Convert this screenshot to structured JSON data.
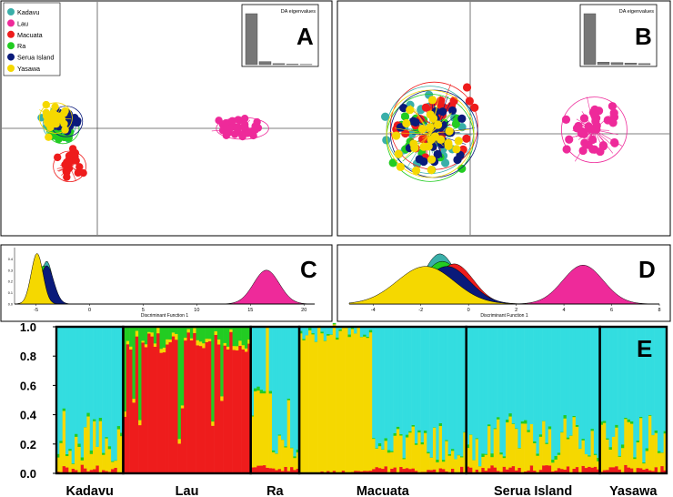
{
  "colors": {
    "Kadavu": "#3aafa9",
    "Lau": "#ee2a9a",
    "Macuata": "#ee1c1c",
    "Ra": "#22cc22",
    "Serua Island": "#0a1a7a",
    "Yasawa": "#f5d800",
    "cyan_structure": "#33dde0",
    "eig_bar": "#777777"
  },
  "chart_data": [
    {
      "type": "scatter",
      "panel": "A",
      "title": "",
      "legend": [
        "Kadavu",
        "Lau",
        "Macuata",
        "Ra",
        "Serua Island",
        "Yasawa"
      ],
      "legend_position": "top-left",
      "centroids": {
        "Kadavu": [
          -0.55,
          0.05
        ],
        "Lau": [
          2.1,
          0.0
        ],
        "Macuata": [
          -0.4,
          -0.55
        ],
        "Ra": [
          -0.5,
          0.0
        ],
        "Serua Island": [
          -0.45,
          0.1
        ],
        "Yasawa": [
          -0.6,
          0.15
        ]
      },
      "eigen_inset": {
        "label": "DA eigenvalues",
        "values": [
          1.0,
          0.06,
          0.02,
          0.01,
          0.005
        ]
      }
    },
    {
      "type": "scatter",
      "panel": "B",
      "title": "",
      "centroids": {
        "Kadavu": [
          -0.5,
          0.05
        ],
        "Lau": [
          1.55,
          0.05
        ],
        "Macuata": [
          -0.45,
          0.1
        ],
        "Ra": [
          -0.5,
          -0.05
        ],
        "Serua Island": [
          -0.45,
          0.0
        ],
        "Yasawa": [
          -0.5,
          0.0
        ]
      },
      "eigen_inset": {
        "label": "DA eigenvalues",
        "values": [
          1.0,
          0.05,
          0.04,
          0.03,
          0.02
        ]
      }
    },
    {
      "type": "area",
      "panel": "C",
      "xlabel": "Discriminant Function 1",
      "xticks": [
        "-5",
        "0",
        "5",
        "10",
        "15",
        "20"
      ],
      "xlim": [
        -7,
        21
      ],
      "yticks": [
        "0.0",
        "0.1",
        "0.2",
        "0.3",
        "0.4"
      ],
      "ylim": [
        0,
        0.5
      ],
      "series": [
        {
          "name": "Kadavu",
          "mean": -4.0,
          "sd": 0.55,
          "peak": 0.38
        },
        {
          "name": "Macuata",
          "mean": -4.6,
          "sd": 0.7,
          "peak": 0.3
        },
        {
          "name": "Ra",
          "mean": -4.3,
          "sd": 0.6,
          "peak": 0.34
        },
        {
          "name": "Serua Island",
          "mean": -4.0,
          "sd": 0.65,
          "peak": 0.34
        },
        {
          "name": "Yasawa",
          "mean": -4.9,
          "sd": 0.55,
          "peak": 0.45
        },
        {
          "name": "Lau",
          "mean": 16.5,
          "sd": 1.2,
          "peak": 0.3
        }
      ]
    },
    {
      "type": "area",
      "panel": "D",
      "xlabel": "Discriminant Function 1",
      "xticks": [
        "-4",
        "-2",
        "0",
        "2",
        "4",
        "6",
        "8"
      ],
      "xlim": [
        -5,
        8
      ],
      "ylim": [
        0,
        0.45
      ],
      "series": [
        {
          "name": "Kadavu",
          "mean": -1.2,
          "sd": 0.7,
          "peak": 0.4
        },
        {
          "name": "Macuata",
          "mean": -0.6,
          "sd": 0.8,
          "peak": 0.32
        },
        {
          "name": "Ra",
          "mean": -1.1,
          "sd": 0.85,
          "peak": 0.34
        },
        {
          "name": "Serua Island",
          "mean": -0.9,
          "sd": 0.95,
          "peak": 0.3
        },
        {
          "name": "Yasawa",
          "mean": -1.8,
          "sd": 1.2,
          "peak": 0.3
        },
        {
          "name": "Lau",
          "mean": 4.8,
          "sd": 0.85,
          "peak": 0.31
        }
      ]
    },
    {
      "type": "bar",
      "panel": "E",
      "stacked": true,
      "yticks": [
        "0.0",
        "0.2",
        "0.4",
        "0.6",
        "0.8",
        "1.0"
      ],
      "ylim": [
        0,
        1
      ],
      "groups": [
        {
          "name": "Kadavu",
          "n": 22,
          "pattern": "cyan"
        },
        {
          "name": "Lau",
          "n": 42,
          "pattern": "red"
        },
        {
          "name": "Ra",
          "n": 16,
          "pattern": "cyan_mixed"
        },
        {
          "name": "Macuata",
          "n": 55,
          "pattern": "yellow_then_cyan"
        },
        {
          "name": "Serua Island",
          "n": 44,
          "pattern": "cyan"
        },
        {
          "name": "Yasawa",
          "n": 22,
          "pattern": "cyan"
        }
      ]
    }
  ],
  "labels": {
    "panel_a": "A",
    "panel_b": "B",
    "panel_c": "C",
    "panel_d": "D",
    "panel_e": "E",
    "eig_a": "DA eigenvalues",
    "eig_b": "DA eigenvalues",
    "df1_c": "Discriminant Function 1",
    "df1_d": "Discriminant Function 1",
    "legend": [
      "Kadavu",
      "Lau",
      "Macuata",
      "Ra",
      "Serua Island",
      "Yasawa"
    ],
    "group_names": [
      "Kadavu",
      "Lau",
      "Ra",
      "Macuata",
      "Serua Island",
      "Yasawa"
    ]
  }
}
